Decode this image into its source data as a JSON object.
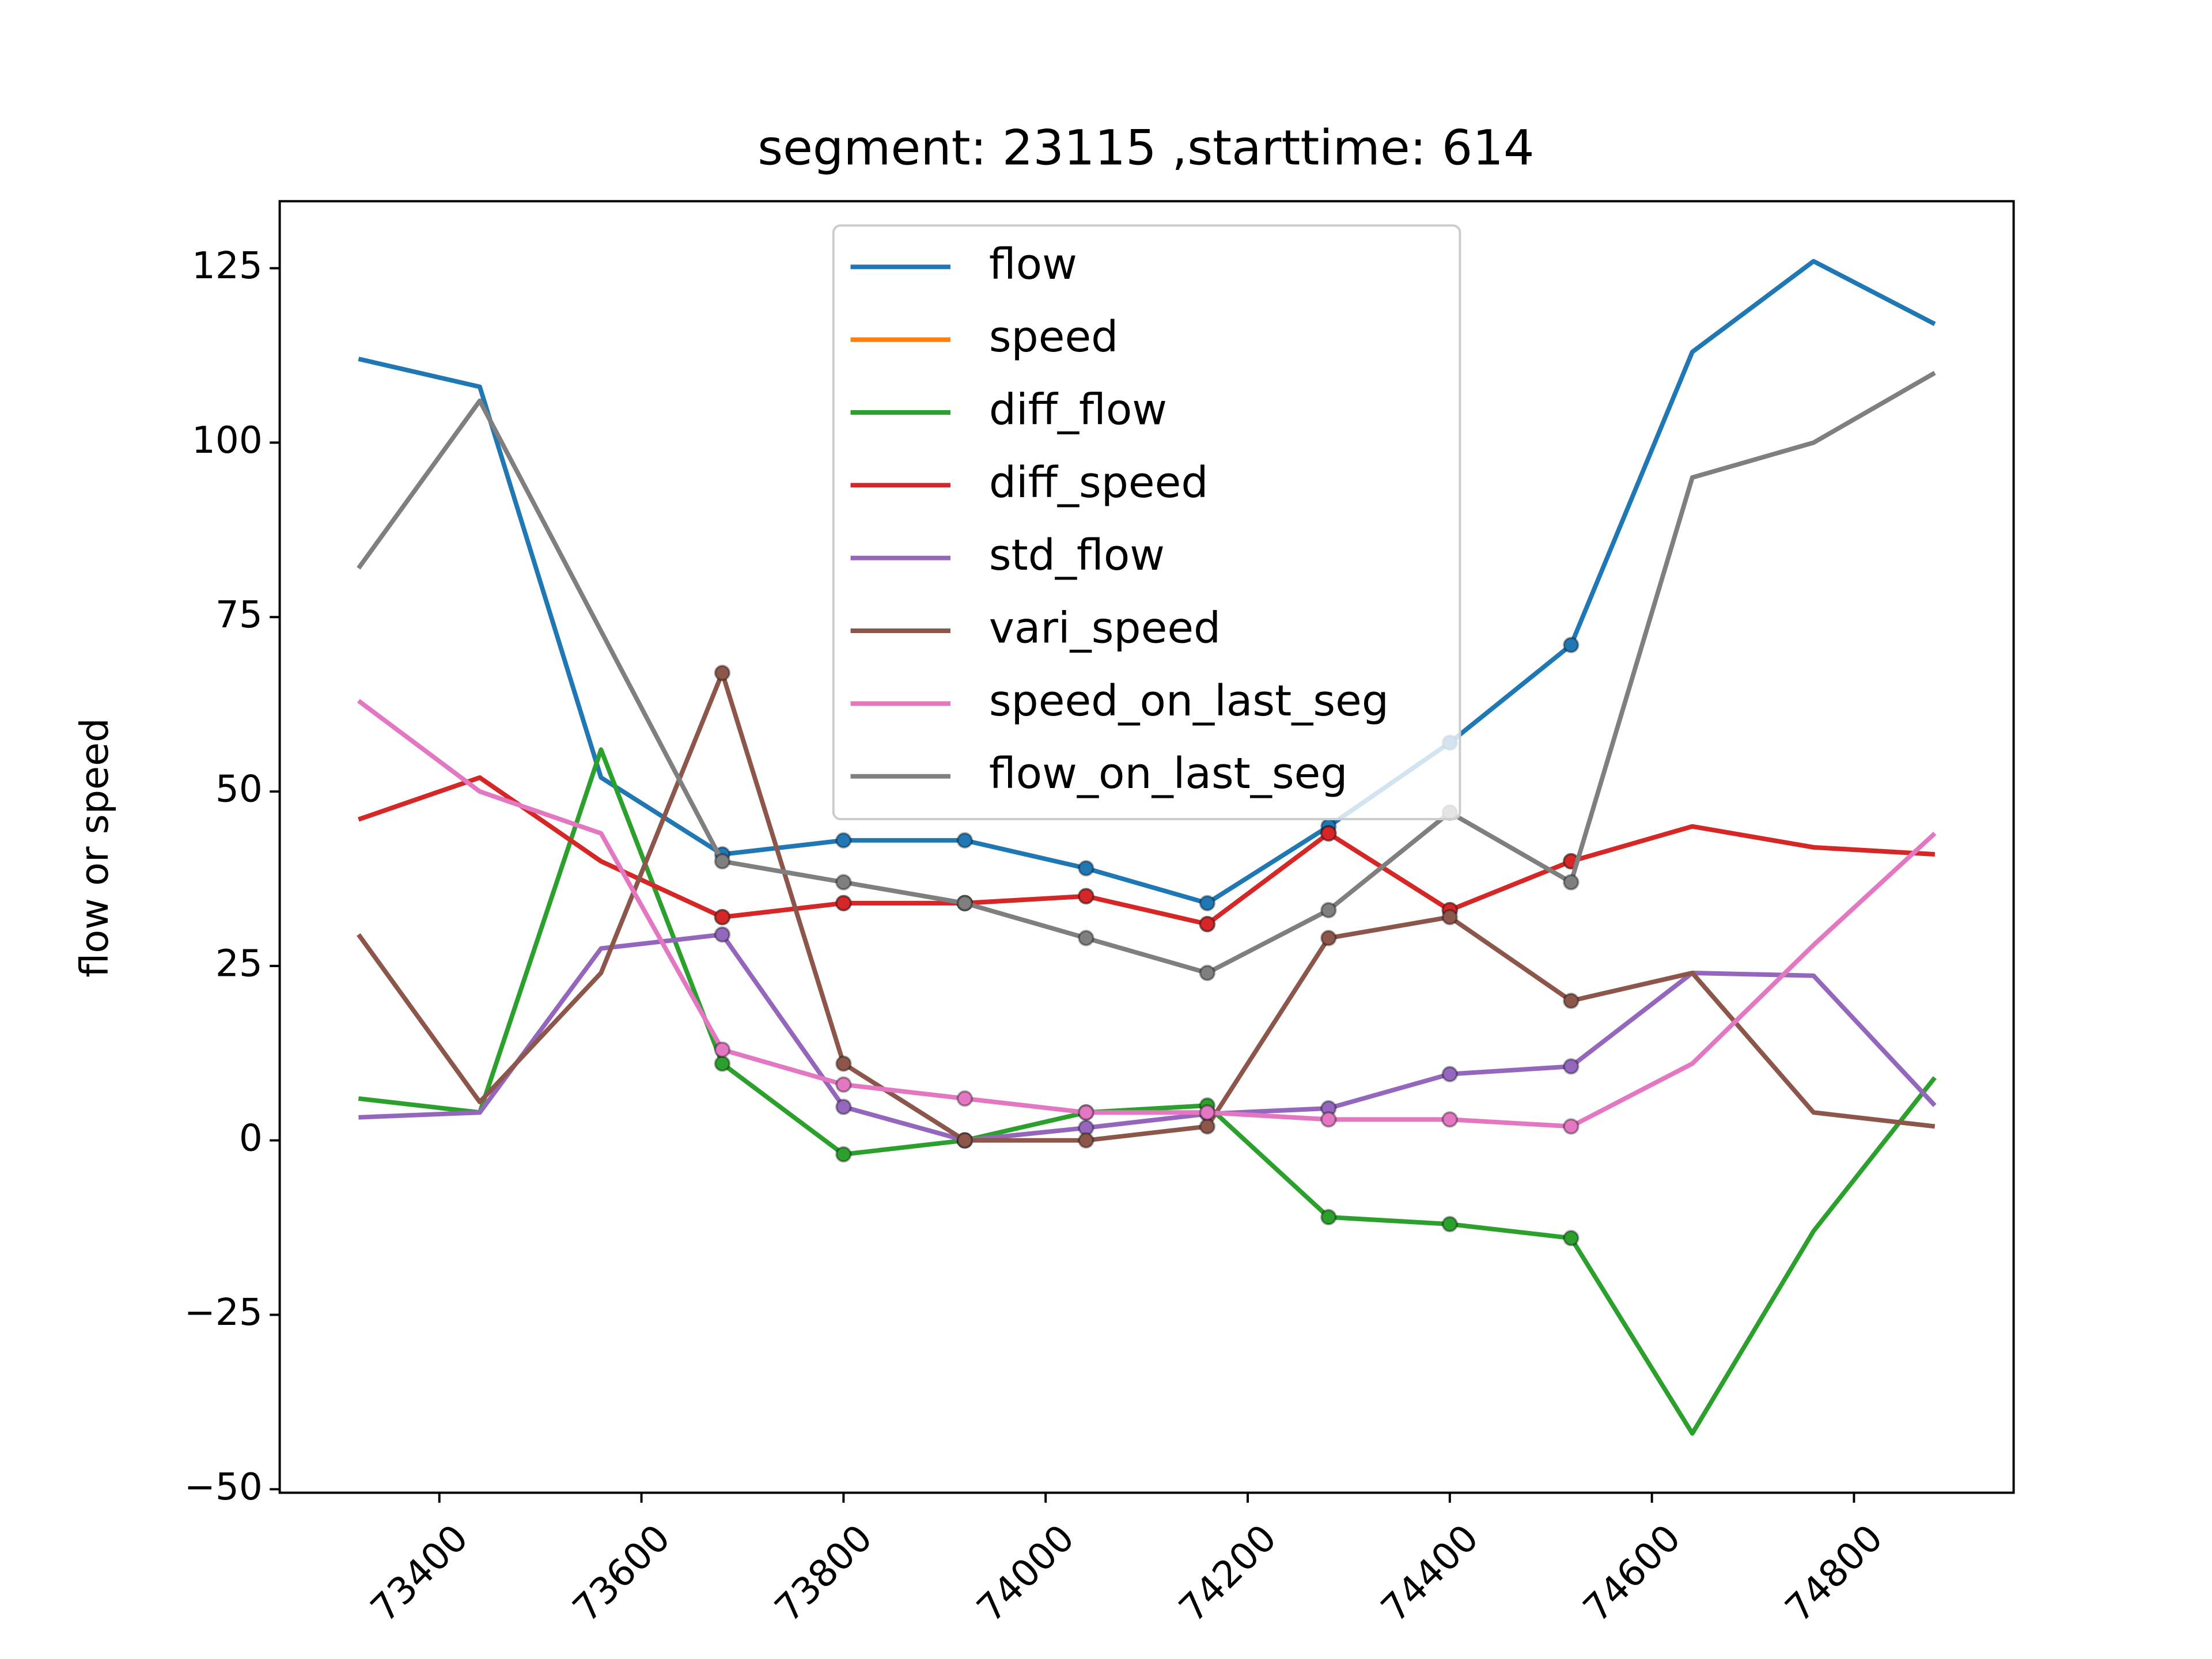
{
  "chart_data": {
    "type": "line",
    "title": "segment: 23115 ,starttime: 614",
    "ylabel": "flow or speed",
    "x": [
      73320,
      73440,
      73560,
      73680,
      73800,
      73920,
      74040,
      74160,
      74280,
      74400,
      74520,
      74640,
      74760,
      74880
    ],
    "xlim": [
      73242,
      74958
    ],
    "xticks": [
      73400,
      73600,
      73800,
      74000,
      74200,
      74400,
      74600,
      74800
    ],
    "ylim": [
      -50.5,
      134.6
    ],
    "yticks": [
      {
        "value": -50,
        "label": "−50"
      },
      {
        "value": -25,
        "label": "−25"
      },
      0,
      25,
      50,
      75,
      100,
      125
    ],
    "marker_range": [
      73680,
      74520
    ],
    "legend": "upper center",
    "series": [
      {
        "name": "flow",
        "color": "#1f77b4",
        "values": [
          112,
          108,
          52,
          41,
          43,
          43,
          39,
          34,
          45,
          57,
          71,
          113,
          126,
          117
        ]
      },
      {
        "name": "speed",
        "color": "#ff7f0e",
        "values": [
          46,
          52,
          40,
          32,
          34,
          34,
          35,
          31,
          44,
          33,
          40,
          45,
          42,
          41
        ]
      },
      {
        "name": "diff_flow",
        "color": "#2ca02c",
        "values": [
          6,
          4,
          56,
          11,
          -2,
          0,
          4,
          5,
          -11,
          -12,
          -14,
          -42,
          -13,
          9
        ]
      },
      {
        "name": "diff_speed",
        "color": "#d62728",
        "values": [
          46,
          52,
          40,
          32,
          34,
          34,
          35,
          31,
          44,
          33,
          40,
          45,
          42,
          41
        ]
      },
      {
        "name": "std_flow",
        "color": "#9467bd",
        "values": [
          3.3,
          4,
          27.5,
          29.5,
          4.8,
          0,
          1.8,
          3.8,
          4.6,
          9.5,
          10.6,
          24,
          23.6,
          5
        ]
      },
      {
        "name": "vari_speed",
        "color": "#8c564b",
        "values": [
          29.5,
          5.5,
          24,
          67,
          11,
          0,
          0,
          2,
          29,
          32,
          20,
          24,
          4,
          2
        ]
      },
      {
        "name": "speed_on_last_seg",
        "color": "#e377c2",
        "values": [
          63,
          50,
          44,
          13,
          8,
          6,
          4,
          4,
          3,
          3,
          2,
          11,
          28,
          44
        ]
      },
      {
        "name": "flow_on_last_seg",
        "color": "#7f7f7f",
        "values": [
          82,
          106,
          73,
          40,
          37,
          34,
          29,
          24,
          33,
          47,
          37,
          95,
          100,
          110
        ]
      }
    ]
  }
}
